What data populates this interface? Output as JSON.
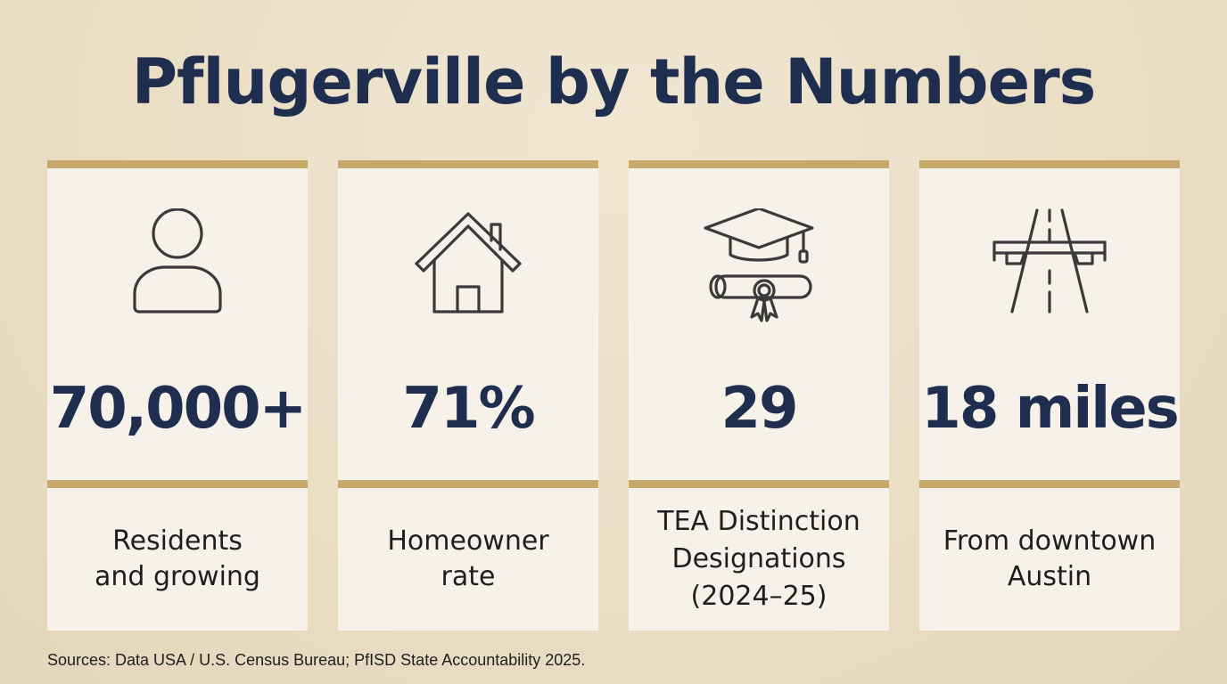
{
  "title": "Pflugerville by the Numbers",
  "colors": {
    "background": "#ebdfc6",
    "card": "#f6f2ea",
    "accent_bar": "#c9a96b",
    "heading": "#1f2d4f",
    "icon_stroke": "#3a3a3a"
  },
  "stats": [
    {
      "icon": "person-icon",
      "value": "70,000+",
      "label": "Residents\nand growing"
    },
    {
      "icon": "house-icon",
      "value": "71%",
      "label": "Homeowner\nrate"
    },
    {
      "icon": "graduation-cap-diploma-icon",
      "value": "29",
      "label": "TEA Distinction\nDesignations\n(2024–25)"
    },
    {
      "icon": "highway-road-icon",
      "value": "18 miles",
      "label": "From downtown\nAustin"
    }
  ],
  "sources": "Sources: Data USA / U.S. Census Bureau; PfISD State Accountability 2025."
}
